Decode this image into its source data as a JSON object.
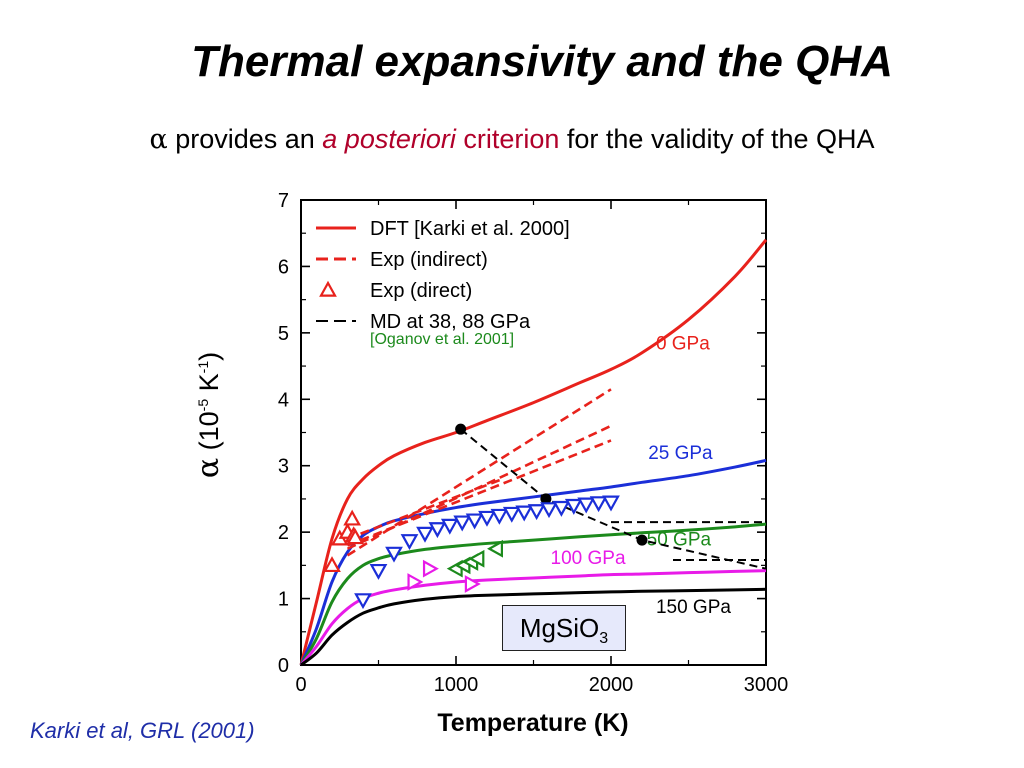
{
  "slide": {
    "title": "Thermal expansivity and the QHA",
    "subtitle_symbol": "α",
    "subtitle_part1": " provides an ",
    "subtitle_emph": "a posteriori",
    "subtitle_part2": " criterion",
    "subtitle_part3": " for the validity of the QHA",
    "citation": "Karki et al, GRL (2001)"
  },
  "colors": {
    "accent_red": "#e8221c",
    "blue": "#1b2fd8",
    "green": "#1c8a1c",
    "magenta": "#e81be8",
    "black": "#000000",
    "legend_green": "#1c8a1c",
    "citation_blue": "#1f2ea8",
    "subtitle_emph": "#b0002a",
    "box_fill": "#e6e9fb"
  },
  "chart_data": {
    "type": "line",
    "title": "",
    "xlabel": "Temperature (K)",
    "ylabel_symbol": "α",
    "ylabel_rest": " (10",
    "ylabel_sup1": "-5",
    "ylabel_unit": " K",
    "ylabel_sup2": "-1",
    "ylabel_close": ")",
    "xlim": [
      0,
      3000
    ],
    "ylim": [
      0,
      7
    ],
    "xticks": [
      0,
      1000,
      2000,
      3000
    ],
    "yticks": [
      0,
      1,
      2,
      3,
      4,
      5,
      6,
      7
    ],
    "grid": false,
    "legend_position": "top-left",
    "legend": [
      {
        "label": "DFT [Karki et al. 2000]",
        "style": "solid",
        "color": "#e8221c"
      },
      {
        "label": "Exp (indirect)",
        "style": "dashed",
        "color": "#e8221c"
      },
      {
        "label": "Exp (direct)",
        "style": "triangle-up",
        "color": "#e8221c"
      },
      {
        "label": "MD at 38, 88 GPa",
        "style": "dashed",
        "color": "#000000"
      },
      {
        "label": "[Oganov et al. 2001]",
        "style": "none",
        "color": "#1c8a1c"
      }
    ],
    "annotation_box": {
      "text": "MgSiO",
      "sub": "3"
    },
    "series": [
      {
        "name": "0 GPa",
        "kind": "dft",
        "color": "#e8221c",
        "x": [
          0,
          100,
          200,
          300,
          400,
          500,
          600,
          800,
          1000,
          1200,
          1500,
          1800,
          2000,
          2200,
          2500,
          2800,
          3000
        ],
        "y": [
          0,
          0.95,
          1.9,
          2.5,
          2.8,
          3.0,
          3.15,
          3.35,
          3.5,
          3.68,
          3.95,
          4.25,
          4.45,
          4.7,
          5.2,
          5.85,
          6.4
        ],
        "label_at": [
          2290,
          4.75
        ]
      },
      {
        "name": "25 GPa",
        "kind": "dft",
        "color": "#1b2fd8",
        "x": [
          0,
          100,
          200,
          300,
          400,
          500,
          600,
          800,
          1000,
          1200,
          1500,
          1800,
          2000,
          2200,
          2500,
          2800,
          3000
        ],
        "y": [
          0,
          0.55,
          1.25,
          1.7,
          1.95,
          2.08,
          2.17,
          2.28,
          2.37,
          2.44,
          2.53,
          2.62,
          2.68,
          2.75,
          2.85,
          2.98,
          3.08
        ],
        "label_at": [
          2240,
          3.1
        ]
      },
      {
        "name": "50 GPa",
        "kind": "dft",
        "color": "#1c8a1c",
        "x": [
          0,
          100,
          200,
          300,
          400,
          500,
          600,
          800,
          1000,
          1200,
          1500,
          1800,
          2000,
          2200,
          2500,
          2800,
          3000
        ],
        "y": [
          0,
          0.4,
          0.95,
          1.3,
          1.5,
          1.6,
          1.66,
          1.74,
          1.79,
          1.83,
          1.88,
          1.93,
          1.96,
          1.99,
          2.03,
          2.08,
          2.12
        ],
        "label_at": [
          2230,
          1.8
        ]
      },
      {
        "name": "100 GPa",
        "kind": "dft",
        "color": "#e81be8",
        "x": [
          0,
          100,
          200,
          300,
          400,
          500,
          600,
          800,
          1000,
          1200,
          1500,
          1800,
          2000,
          2200,
          2500,
          2800,
          3000
        ],
        "y": [
          0,
          0.28,
          0.62,
          0.85,
          1.0,
          1.08,
          1.13,
          1.2,
          1.25,
          1.28,
          1.31,
          1.34,
          1.36,
          1.37,
          1.39,
          1.41,
          1.42
        ],
        "label_at": [
          1610,
          1.52
        ]
      },
      {
        "name": "150 GPa",
        "kind": "dft",
        "color": "#000000",
        "x": [
          0,
          100,
          200,
          300,
          400,
          500,
          600,
          800,
          1000,
          1200,
          1500,
          1800,
          2000,
          2200,
          2500,
          2800,
          3000
        ],
        "y": [
          0,
          0.18,
          0.45,
          0.64,
          0.78,
          0.86,
          0.92,
          0.99,
          1.03,
          1.05,
          1.07,
          1.09,
          1.1,
          1.11,
          1.12,
          1.13,
          1.14
        ],
        "label_at": [
          2290,
          0.78
        ]
      },
      {
        "name": "",
        "kind": "exp-indirect",
        "color": "#e8221c",
        "style": "dashed",
        "x": [
          300,
          2000
        ],
        "y": [
          1.65,
          4.15
        ]
      },
      {
        "name": "",
        "kind": "exp-indirect",
        "color": "#e8221c",
        "style": "dashed",
        "x": [
          300,
          2000
        ],
        "y": [
          1.75,
          3.6
        ]
      },
      {
        "name": "",
        "kind": "exp-indirect",
        "color": "#e8221c",
        "style": "dashed",
        "x": [
          300,
          2000
        ],
        "y": [
          1.8,
          3.38
        ]
      },
      {
        "name": "",
        "kind": "exp-indirect",
        "color": "#e8221c",
        "style": "dashed",
        "x": [
          300,
          1300
        ],
        "y": [
          1.9,
          2.8
        ]
      },
      {
        "name": "",
        "kind": "md",
        "color": "#000000",
        "style": "dashed",
        "x": [
          1030,
          1580,
          2200,
          3000
        ],
        "y": [
          3.55,
          2.5,
          1.88,
          1.45
        ]
      },
      {
        "name": "",
        "kind": "md",
        "color": "#000000",
        "style": "dashed",
        "x": [
          2000,
          3000
        ],
        "y": [
          2.15,
          2.15
        ]
      },
      {
        "name": "",
        "kind": "md",
        "color": "#000000",
        "style": "dashed",
        "x": [
          2400,
          3000
        ],
        "y": [
          1.58,
          1.58
        ]
      },
      {
        "name": "",
        "kind": "md-point",
        "color": "#000000",
        "marker": "circle",
        "x": [
          1030,
          1580,
          2200
        ],
        "y": [
          3.55,
          2.5,
          1.88
        ]
      },
      {
        "name": "",
        "kind": "exp-direct",
        "color": "#e8221c",
        "marker": "triangle-up",
        "x": [
          200,
          250,
          300,
          330,
          340,
          350
        ],
        "y": [
          1.5,
          1.9,
          2.0,
          2.2,
          1.95,
          1.92
        ]
      },
      {
        "name": "",
        "kind": "exp-direct",
        "color": "#1b2fd8",
        "marker": "triangle-down",
        "x": [
          400,
          500,
          600,
          700,
          800,
          880,
          960,
          1040,
          1120,
          1200,
          1280,
          1360,
          1440,
          1520,
          1600,
          1680,
          1760,
          1840,
          1920,
          2000
        ],
        "y": [
          0.98,
          1.42,
          1.68,
          1.87,
          1.98,
          2.05,
          2.1,
          2.15,
          2.18,
          2.22,
          2.25,
          2.28,
          2.3,
          2.32,
          2.35,
          2.37,
          2.4,
          2.42,
          2.44,
          2.45
        ]
      },
      {
        "name": "",
        "kind": "exp-direct",
        "color": "#1c8a1c",
        "marker": "triangle-left",
        "x": [
          1000,
          1050,
          1100,
          1140,
          1260
        ],
        "y": [
          1.45,
          1.5,
          1.55,
          1.6,
          1.75
        ]
      },
      {
        "name": "",
        "kind": "exp-direct",
        "color": "#e81be8",
        "marker": "triangle-right",
        "x": [
          730,
          830,
          1100
        ],
        "y": [
          1.25,
          1.45,
          1.22
        ]
      }
    ]
  }
}
